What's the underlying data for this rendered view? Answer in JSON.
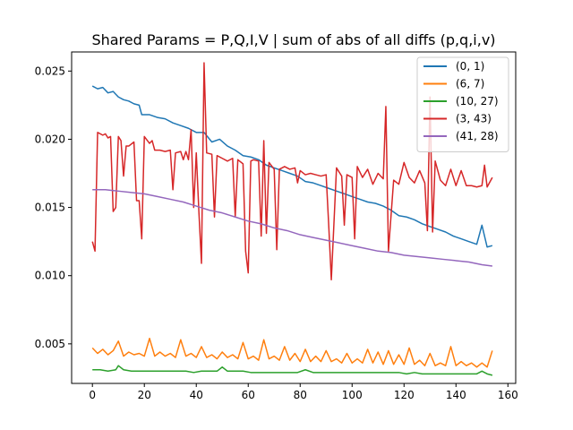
{
  "chart_data": {
    "type": "line",
    "title": "Shared Params = P,Q,I,V | sum of abs of all diffs (p,q,i,v)",
    "xlabel": "",
    "ylabel": "",
    "xlim": [
      -8,
      163
    ],
    "ylim": [
      0.0021,
      0.0264
    ],
    "xticks": [
      0,
      20,
      40,
      60,
      80,
      100,
      120,
      140,
      160
    ],
    "yticks": [
      0.005,
      0.01,
      0.015,
      0.02,
      0.025
    ],
    "ytick_labels": [
      "0.005",
      "0.010",
      "0.015",
      "0.020",
      "0.025"
    ],
    "grid": false,
    "legend_position": "top-right",
    "series": [
      {
        "name": "(0, 1)",
        "color": "#1f77b4",
        "x": [
          0,
          2,
          4,
          6,
          8,
          10,
          12,
          14,
          16,
          18,
          19,
          22,
          25,
          28,
          31,
          34,
          37,
          40,
          43,
          46,
          49,
          52,
          55,
          58,
          61,
          64,
          67,
          70,
          73,
          76,
          79,
          82,
          85,
          88,
          91,
          94,
          97,
          100,
          103,
          106,
          109,
          112,
          115,
          118,
          121,
          124,
          127,
          130,
          133,
          136,
          139,
          142,
          145,
          148,
          150,
          152,
          154
        ],
        "y": [
          0.0239,
          0.0237,
          0.0238,
          0.0234,
          0.0235,
          0.0231,
          0.0229,
          0.0228,
          0.0226,
          0.0225,
          0.0218,
          0.0218,
          0.0216,
          0.0215,
          0.0212,
          0.021,
          0.0208,
          0.0205,
          0.0205,
          0.0198,
          0.02,
          0.0195,
          0.0192,
          0.0188,
          0.0187,
          0.0185,
          0.0181,
          0.0179,
          0.0177,
          0.0175,
          0.0173,
          0.0169,
          0.0168,
          0.0166,
          0.0164,
          0.0162,
          0.016,
          0.0158,
          0.0156,
          0.0154,
          0.0153,
          0.0151,
          0.0148,
          0.0144,
          0.0143,
          0.0141,
          0.0138,
          0.0136,
          0.0134,
          0.0132,
          0.0129,
          0.0127,
          0.0125,
          0.0123,
          0.0137,
          0.0121,
          0.0122
        ]
      },
      {
        "name": "(6, 7)",
        "color": "#ff7f0e",
        "x": [
          0,
          2,
          4,
          6,
          8,
          10,
          12,
          14,
          16,
          18,
          20,
          22,
          24,
          26,
          28,
          30,
          32,
          34,
          36,
          38,
          40,
          42,
          44,
          46,
          48,
          50,
          52,
          54,
          56,
          58,
          60,
          62,
          64,
          66,
          68,
          70,
          72,
          74,
          76,
          78,
          80,
          82,
          84,
          86,
          88,
          90,
          92,
          94,
          96,
          98,
          100,
          102,
          104,
          106,
          108,
          110,
          112,
          114,
          116,
          118,
          120,
          122,
          124,
          126,
          128,
          130,
          132,
          134,
          136,
          138,
          140,
          142,
          144,
          146,
          148,
          150,
          152,
          154
        ],
        "y": [
          0.0047,
          0.0043,
          0.0046,
          0.0042,
          0.0045,
          0.0052,
          0.0041,
          0.0044,
          0.0042,
          0.0043,
          0.0041,
          0.0054,
          0.0041,
          0.0044,
          0.0041,
          0.0043,
          0.004,
          0.0053,
          0.0041,
          0.0043,
          0.004,
          0.0048,
          0.004,
          0.0042,
          0.0039,
          0.0044,
          0.004,
          0.0042,
          0.0039,
          0.0051,
          0.0039,
          0.0041,
          0.0038,
          0.0053,
          0.0039,
          0.0041,
          0.0038,
          0.0048,
          0.0038,
          0.0043,
          0.0037,
          0.0046,
          0.0037,
          0.0041,
          0.0037,
          0.0045,
          0.0037,
          0.0039,
          0.0036,
          0.0043,
          0.0036,
          0.0039,
          0.0036,
          0.0046,
          0.0036,
          0.0044,
          0.0035,
          0.0045,
          0.0035,
          0.0042,
          0.0035,
          0.0047,
          0.0035,
          0.0038,
          0.0034,
          0.0043,
          0.0034,
          0.0036,
          0.0034,
          0.0048,
          0.0034,
          0.0037,
          0.0034,
          0.0036,
          0.0033,
          0.0036,
          0.0033,
          0.0045
        ]
      },
      {
        "name": "(10, 27)",
        "color": "#2ca02c",
        "x": [
          0,
          3,
          6,
          9,
          10,
          12,
          15,
          18,
          21,
          24,
          27,
          30,
          33,
          36,
          39,
          42,
          45,
          48,
          50,
          52,
          55,
          58,
          61,
          64,
          67,
          70,
          73,
          76,
          79,
          82,
          85,
          88,
          91,
          94,
          97,
          100,
          103,
          106,
          109,
          112,
          115,
          118,
          121,
          124,
          127,
          130,
          133,
          136,
          139,
          142,
          145,
          148,
          150,
          152,
          154
        ],
        "y": [
          0.0031,
          0.0031,
          0.003,
          0.0031,
          0.0034,
          0.0031,
          0.003,
          0.003,
          0.003,
          0.003,
          0.003,
          0.003,
          0.003,
          0.003,
          0.0029,
          0.003,
          0.003,
          0.003,
          0.0033,
          0.003,
          0.003,
          0.003,
          0.0029,
          0.0029,
          0.0029,
          0.0029,
          0.0029,
          0.0029,
          0.0029,
          0.0031,
          0.0029,
          0.0029,
          0.0029,
          0.0029,
          0.0029,
          0.0029,
          0.0029,
          0.0029,
          0.0029,
          0.0029,
          0.0029,
          0.0029,
          0.0028,
          0.0029,
          0.0028,
          0.0028,
          0.0028,
          0.0028,
          0.0028,
          0.0028,
          0.0028,
          0.0028,
          0.003,
          0.0028,
          0.0027
        ]
      },
      {
        "name": "(3, 43)",
        "color": "#d62728",
        "x": [
          0,
          1,
          2,
          4,
          5,
          6,
          7,
          8,
          9,
          10,
          11,
          12,
          13,
          14,
          16,
          17,
          18,
          19,
          20,
          22,
          23,
          24,
          26,
          28,
          30,
          31,
          32,
          34,
          35,
          36,
          37,
          38,
          39,
          40,
          41,
          42,
          43,
          44,
          46,
          47,
          48,
          50,
          52,
          54,
          55,
          56,
          58,
          59,
          60,
          61,
          62,
          64,
          65,
          66,
          67,
          68,
          70,
          71,
          72,
          74,
          76,
          78,
          79,
          80,
          82,
          84,
          86,
          88,
          90,
          91,
          92,
          94,
          96,
          97,
          98,
          100,
          101,
          102,
          104,
          106,
          108,
          110,
          112,
          113,
          114,
          116,
          118,
          120,
          122,
          124,
          126,
          128,
          129,
          130,
          131,
          132,
          134,
          136,
          138,
          140,
          142,
          144,
          146,
          148,
          150,
          151,
          152,
          154
        ],
        "y": [
          0.0125,
          0.0118,
          0.0205,
          0.0203,
          0.0204,
          0.0201,
          0.0202,
          0.0147,
          0.015,
          0.0202,
          0.0199,
          0.0173,
          0.0195,
          0.0195,
          0.0198,
          0.0155,
          0.0155,
          0.0127,
          0.0202,
          0.0197,
          0.0199,
          0.0192,
          0.0192,
          0.0191,
          0.0192,
          0.0163,
          0.019,
          0.0191,
          0.0185,
          0.0191,
          0.0185,
          0.0207,
          0.015,
          0.019,
          0.0147,
          0.0109,
          0.0256,
          0.019,
          0.0189,
          0.0143,
          0.0188,
          0.0186,
          0.0184,
          0.0186,
          0.0143,
          0.0185,
          0.0182,
          0.0118,
          0.0102,
          0.0184,
          0.0185,
          0.0184,
          0.0129,
          0.0199,
          0.0131,
          0.0183,
          0.0178,
          0.0119,
          0.0178,
          0.018,
          0.0178,
          0.0179,
          0.0168,
          0.0177,
          0.0174,
          0.0175,
          0.0174,
          0.0173,
          0.0174,
          0.0137,
          0.0097,
          0.0179,
          0.0173,
          0.0137,
          0.0174,
          0.0172,
          0.0127,
          0.018,
          0.0172,
          0.0178,
          0.0167,
          0.0175,
          0.0171,
          0.0224,
          0.0118,
          0.017,
          0.0167,
          0.0183,
          0.0172,
          0.0168,
          0.0177,
          0.0168,
          0.0133,
          0.0231,
          0.0132,
          0.0184,
          0.017,
          0.0166,
          0.0178,
          0.0166,
          0.0177,
          0.0166,
          0.0166,
          0.0165,
          0.0166,
          0.0181,
          0.0165,
          0.0172
        ]
      },
      {
        "name": "(41, 28)",
        "color": "#9467bd",
        "x": [
          0,
          5,
          10,
          15,
          20,
          25,
          30,
          35,
          40,
          45,
          50,
          55,
          60,
          65,
          70,
          75,
          80,
          85,
          90,
          95,
          100,
          105,
          110,
          115,
          120,
          125,
          130,
          135,
          140,
          145,
          150,
          154
        ],
        "y": [
          0.0163,
          0.0163,
          0.0162,
          0.0161,
          0.016,
          0.0158,
          0.0156,
          0.0154,
          0.0151,
          0.0148,
          0.0146,
          0.0143,
          0.014,
          0.0138,
          0.0135,
          0.0133,
          0.013,
          0.0128,
          0.0126,
          0.0124,
          0.0122,
          0.012,
          0.0118,
          0.0117,
          0.0115,
          0.0114,
          0.0113,
          0.0112,
          0.0111,
          0.011,
          0.0108,
          0.0107
        ]
      }
    ]
  }
}
